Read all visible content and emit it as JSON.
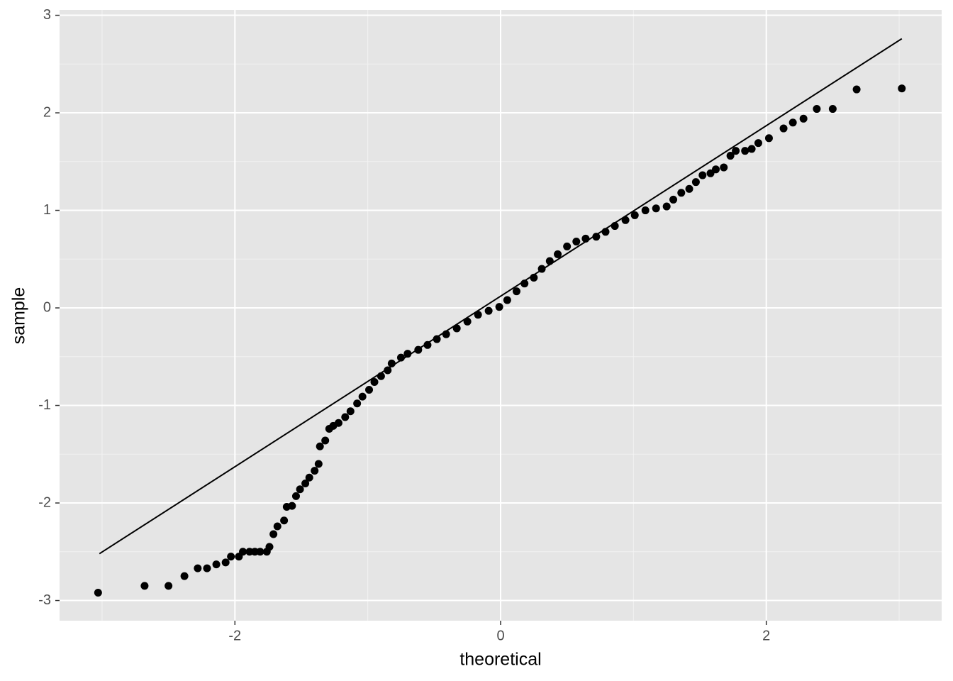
{
  "chart_data": {
    "type": "scatter",
    "x_label": "theoretical",
    "y_label": "sample",
    "xlim": [
      -3.32,
      3.32
    ],
    "ylim": [
      -3.207,
      3.055
    ],
    "xticks": [
      -2,
      0,
      2
    ],
    "yticks": [
      -3,
      -2,
      -1,
      0,
      1,
      2,
      3
    ],
    "grid": true,
    "color": "#000000",
    "x": [
      -3.03,
      -2.68,
      -2.5,
      -2.38,
      -2.28,
      -2.21,
      -2.14,
      -2.07,
      -2.03,
      -1.97,
      -1.94,
      -1.89,
      -1.85,
      -1.81,
      -1.76,
      -1.74,
      -1.71,
      -1.68,
      -1.63,
      -1.61,
      -1.57,
      -1.54,
      -1.51,
      -1.47,
      -1.44,
      -1.4,
      -1.37,
      -1.36,
      -1.32,
      -1.29,
      -1.26,
      -1.22,
      -1.17,
      -1.13,
      -1.08,
      -1.04,
      -0.99,
      -0.95,
      -0.9,
      -0.85,
      -0.82,
      -0.75,
      -0.7,
      -0.62,
      -0.55,
      -0.48,
      -0.41,
      -0.33,
      -0.25,
      -0.17,
      -0.09,
      -0.01,
      0.05,
      0.12,
      0.18,
      0.25,
      0.31,
      0.37,
      0.43,
      0.5,
      0.57,
      0.64,
      0.72,
      0.79,
      0.86,
      0.94,
      1.01,
      1.09,
      1.17,
      1.25,
      1.3,
      1.36,
      1.42,
      1.47,
      1.52,
      1.58,
      1.62,
      1.68,
      1.73,
      1.77,
      1.84,
      1.89,
      1.94,
      2.02,
      2.13,
      2.2,
      2.28,
      2.38,
      2.5,
      2.68,
      3.02
    ],
    "values": [
      -2.92,
      -2.85,
      -2.85,
      -2.75,
      -2.67,
      -2.67,
      -2.63,
      -2.61,
      -2.55,
      -2.55,
      -2.5,
      -2.5,
      -2.5,
      -2.5,
      -2.5,
      -2.45,
      -2.32,
      -2.24,
      -2.18,
      -2.04,
      -2.03,
      -1.93,
      -1.86,
      -1.8,
      -1.74,
      -1.67,
      -1.6,
      -1.42,
      -1.36,
      -1.24,
      -1.21,
      -1.18,
      -1.12,
      -1.06,
      -0.98,
      -0.91,
      -0.84,
      -0.76,
      -0.7,
      -0.64,
      -0.57,
      -0.51,
      -0.47,
      -0.43,
      -0.38,
      -0.32,
      -0.27,
      -0.21,
      -0.14,
      -0.07,
      -0.03,
      0.01,
      0.08,
      0.17,
      0.25,
      0.31,
      0.4,
      0.48,
      0.55,
      0.63,
      0.68,
      0.71,
      0.73,
      0.78,
      0.84,
      0.9,
      0.95,
      1.0,
      1.02,
      1.04,
      1.11,
      1.18,
      1.22,
      1.29,
      1.36,
      1.38,
      1.42,
      1.44,
      1.56,
      1.61,
      1.61,
      1.63,
      1.69,
      1.74,
      1.84,
      1.9,
      1.94,
      2.04,
      2.04,
      2.24,
      2.25
    ],
    "reference_line": {
      "x": [
        -3.02,
        3.02
      ],
      "values": [
        -2.52,
        2.76
      ]
    }
  }
}
